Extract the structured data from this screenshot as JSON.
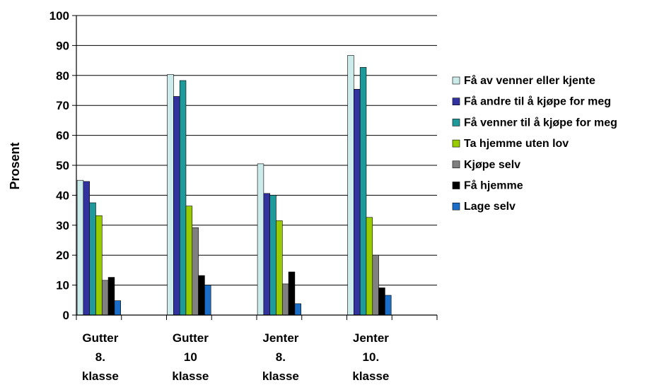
{
  "chart_data": {
    "type": "bar",
    "title": "",
    "xlabel": "",
    "ylabel": "Prosent",
    "ylim": [
      0,
      100
    ],
    "yticks": [
      0,
      10,
      20,
      30,
      40,
      50,
      60,
      70,
      80,
      90,
      100
    ],
    "grid": true,
    "legend_position": "right",
    "categories": [
      [
        "Gutter",
        "8.",
        "klasse"
      ],
      [
        "Gutter",
        "10",
        "klasse"
      ],
      [
        "Jenter",
        "8.",
        "klasse"
      ],
      [
        "Jenter",
        "10.",
        "klasse"
      ]
    ],
    "series": [
      {
        "name": "Få av venner eller kjente",
        "color": "#ccecec",
        "values": [
          45,
          80.3,
          50.5,
          86.7
        ]
      },
      {
        "name": "Få andre til å kjøpe for meg",
        "color": "#3333a0",
        "values": [
          44.6,
          73,
          40.6,
          75.4
        ]
      },
      {
        "name": "Få venner til å kjøpe for meg",
        "color": "#1e9a9a",
        "values": [
          37.5,
          78.3,
          40,
          82.7
        ]
      },
      {
        "name": "Ta hjemme uten lov",
        "color": "#99cc00",
        "values": [
          33.2,
          36.4,
          31.5,
          32.6
        ]
      },
      {
        "name": "Kjøpe selv",
        "color": "#808080",
        "values": [
          11.6,
          29.2,
          10.4,
          20
        ]
      },
      {
        "name": "Få hjemme",
        "color": "#000000",
        "values": [
          12.6,
          13.2,
          14.4,
          9.1
        ]
      },
      {
        "name": "Lage selv",
        "color": "#1a6ec8",
        "values": [
          4.8,
          10,
          3.8,
          6.6
        ]
      }
    ]
  }
}
